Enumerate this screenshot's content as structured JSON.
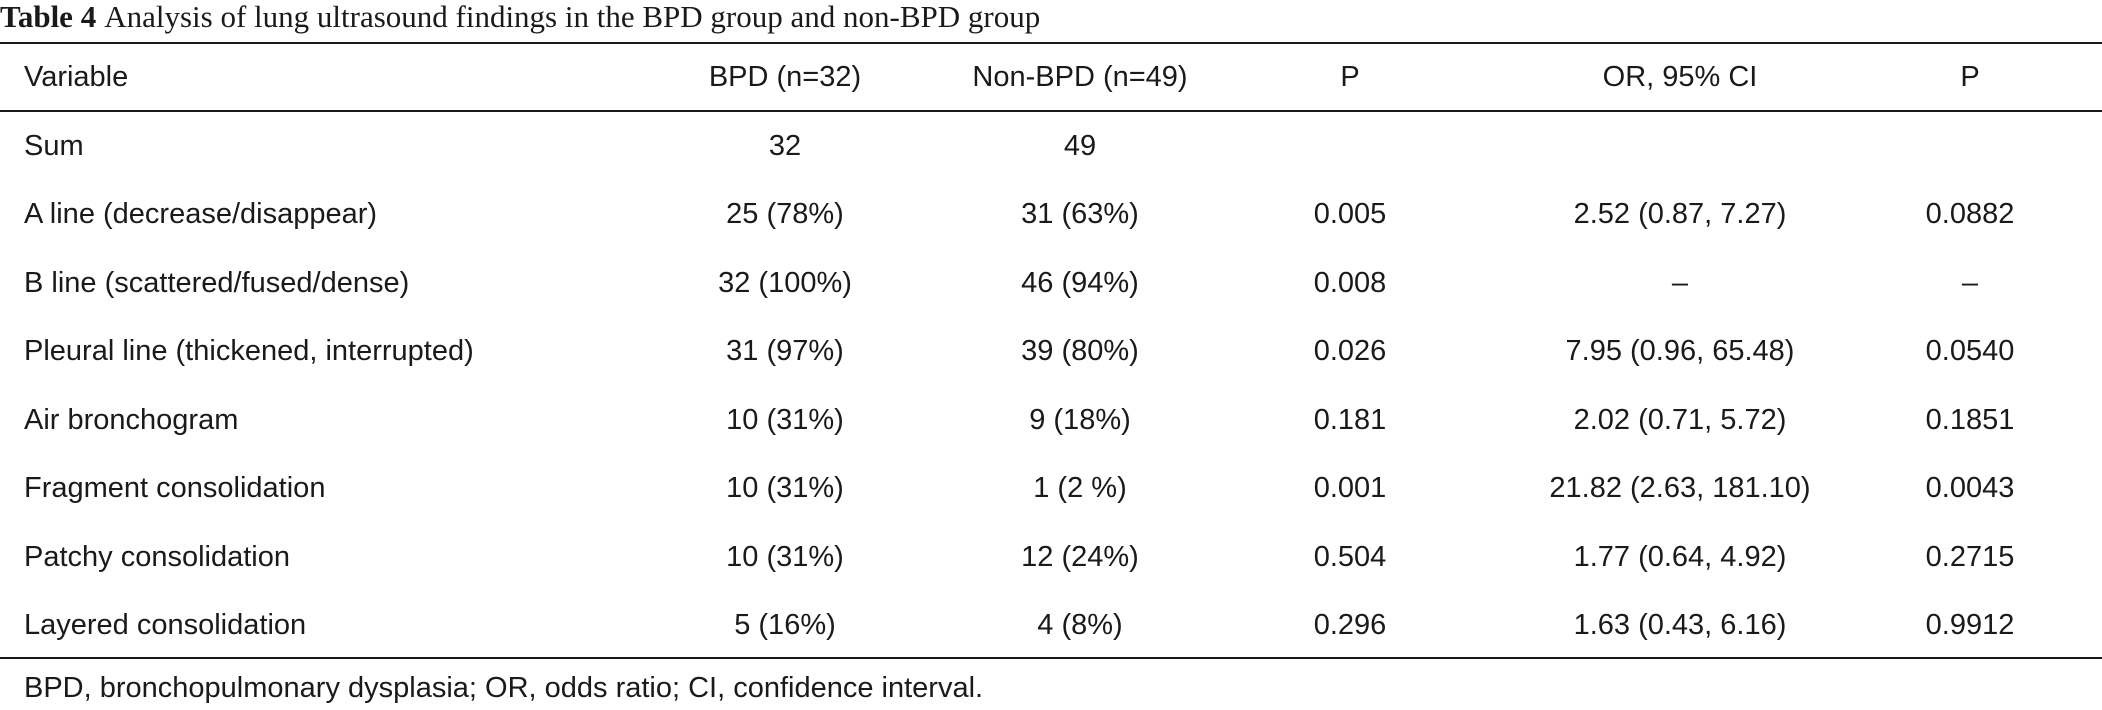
{
  "caption": {
    "label": "Table 4",
    "text": "Analysis of lung ultrasound findings in the BPD group and non-BPD group"
  },
  "columns": [
    "Variable",
    "BPD (n=32)",
    "Non-BPD (n=49)",
    "P",
    "OR, 95% CI",
    "P"
  ],
  "rows": [
    [
      "Sum",
      "32",
      "49",
      "",
      "",
      ""
    ],
    [
      "A line (decrease/disappear)",
      "25 (78%)",
      "31 (63%)",
      "0.005",
      "2.52 (0.87, 7.27)",
      "0.0882"
    ],
    [
      "B line (scattered/fused/dense)",
      "32 (100%)",
      "46 (94%)",
      "0.008",
      "–",
      "–"
    ],
    [
      "Pleural line (thickened, interrupted)",
      "31 (97%)",
      "39 (80%)",
      "0.026",
      "7.95 (0.96, 65.48)",
      "0.0540"
    ],
    [
      "Air bronchogram",
      "10 (31%)",
      "9 (18%)",
      "0.181",
      "2.02 (0.71, 5.72)",
      "0.1851"
    ],
    [
      "Fragment consolidation",
      "10 (31%)",
      "1 (2 %)",
      "0.001",
      "21.82 (2.63, 181.10)",
      "0.0043"
    ],
    [
      "Patchy consolidation",
      "10 (31%)",
      "12 (24%)",
      "0.504",
      "1.77 (0.64, 4.92)",
      "0.2715"
    ],
    [
      "Layered consolidation",
      "5 (16%)",
      "4 (8%)",
      "0.296",
      "1.63 (0.43, 6.16)",
      "0.9912"
    ]
  ],
  "footnote": "BPD, bronchopulmonary dysplasia; OR, odds ratio; CI, confidence interval."
}
